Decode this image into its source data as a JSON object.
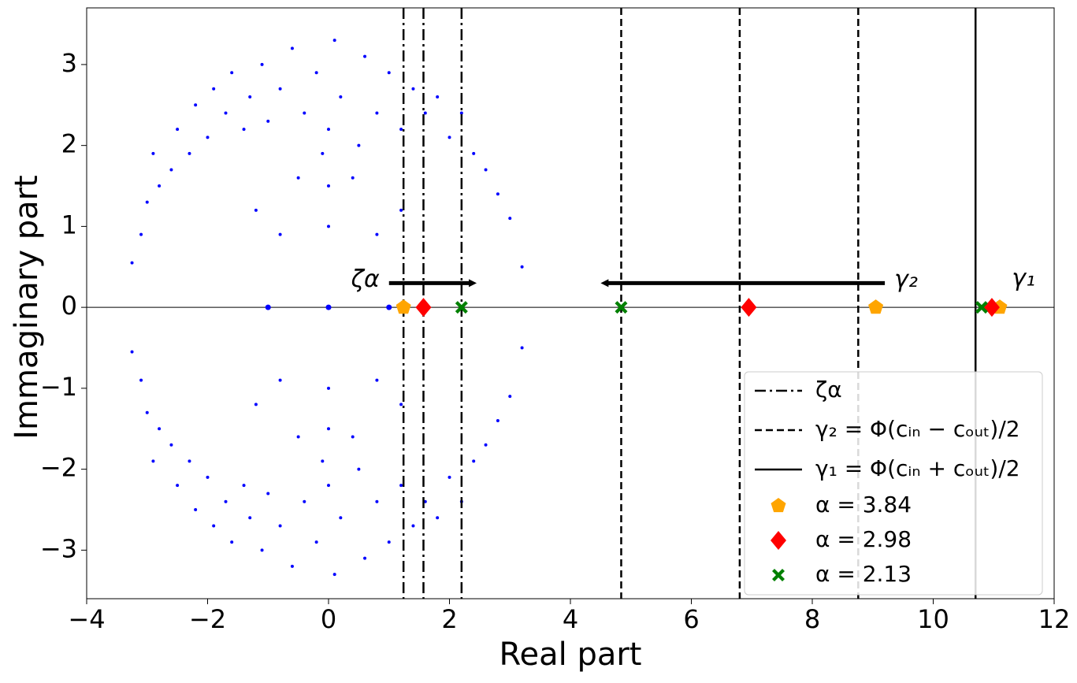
{
  "chart_data": {
    "type": "scatter",
    "xlabel": "Real part",
    "ylabel": "Immaginary part",
    "xlim": [
      -4,
      12
    ],
    "ylim": [
      -3.6,
      3.7
    ],
    "xticks": [
      {
        "value": -4,
        "label": "−4"
      },
      {
        "value": -2,
        "label": "−2"
      },
      0,
      2,
      4,
      6,
      8,
      10,
      12
    ],
    "yticks": [
      {
        "value": -3,
        "label": "−3"
      },
      {
        "value": -2,
        "label": "−2"
      },
      {
        "value": -1,
        "label": "−1"
      },
      0,
      1,
      2,
      3
    ],
    "eigenvalues": {
      "color": "#0000ff",
      "x": [
        -3.25,
        -3.1,
        -3.0,
        -2.8,
        -2.9,
        -2.6,
        -2.5,
        -2.3,
        -2.2,
        -2.0,
        -1.9,
        -1.7,
        -1.6,
        -1.4,
        -1.3,
        -1.1,
        -1.0,
        -0.8,
        -0.6,
        -0.5,
        -0.4,
        -0.2,
        -0.1,
        0,
        0,
        0,
        0.1,
        0.2,
        0.4,
        0.5,
        0.6,
        0.8,
        1.0,
        1.2,
        1.4,
        1.6,
        1.8,
        2.0,
        2.2,
        2.4,
        2.6,
        2.8,
        3.0,
        3.2,
        -1.2,
        1.2,
        -0.8,
        0.8,
        -3.25,
        -3.1,
        -3.0,
        -2.8,
        -2.9,
        -2.6,
        -2.5,
        -2.3,
        -2.2,
        -2.0,
        -1.9,
        -1.7,
        -1.6,
        -1.4,
        -1.3,
        -1.1,
        -1.0,
        -0.8,
        -0.6,
        -0.5,
        -0.4,
        -0.2,
        -0.1,
        0,
        0,
        0,
        0.1,
        0.2,
        0.4,
        0.5,
        0.6,
        0.8,
        1.0,
        1.2,
        1.4,
        1.6,
        1.8,
        2.0,
        2.2,
        2.4,
        2.6,
        2.8,
        3.0,
        3.2,
        -1.2,
        1.2,
        -0.8,
        0.8,
        -1,
        0,
        1
      ],
      "y": [
        0.55,
        0.9,
        1.3,
        1.5,
        1.9,
        1.7,
        2.2,
        1.9,
        2.5,
        2.1,
        2.7,
        2.4,
        2.9,
        2.2,
        2.6,
        3.0,
        2.3,
        2.7,
        3.2,
        1.6,
        2.4,
        2.9,
        1.9,
        1.0,
        1.5,
        2.2,
        3.3,
        2.6,
        1.6,
        2.0,
        3.1,
        2.4,
        2.9,
        2.2,
        2.7,
        2.4,
        2.6,
        2.1,
        2.4,
        1.9,
        1.7,
        1.4,
        1.1,
        0.5,
        1.2,
        1.2,
        0.9,
        0.9,
        -0.55,
        -0.9,
        -1.3,
        -1.5,
        -1.9,
        -1.7,
        -2.2,
        -1.9,
        -2.5,
        -2.1,
        -2.7,
        -2.4,
        -2.9,
        -2.2,
        -2.6,
        -3.0,
        -2.3,
        -2.7,
        -3.2,
        -1.6,
        -2.4,
        -2.9,
        -1.9,
        -1.0,
        -1.5,
        -2.2,
        -3.3,
        -2.6,
        -1.6,
        -2.0,
        -3.1,
        -2.4,
        -2.9,
        -2.2,
        -2.7,
        -2.4,
        -2.6,
        -2.1,
        -2.4,
        -1.9,
        -1.7,
        -1.4,
        -1.1,
        -0.5,
        -1.2,
        -1.2,
        -0.9,
        -0.9,
        0,
        0,
        0
      ]
    },
    "lines": [
      {
        "name": "ζα",
        "style": "dashdot",
        "color": "#000000",
        "x": [
          1.24,
          1.57,
          2.2
        ]
      },
      {
        "name": "γ₂ = Φ(cᵢₙ − cₒᵤₜ)/2",
        "style": "dashed",
        "color": "#000000",
        "x": [
          4.84,
          6.8,
          8.76
        ]
      },
      {
        "name": "γ₁ = Φ(cᵢₙ + cₒᵤₜ)/2",
        "style": "solid",
        "color": "#000000",
        "x": [
          10.7
        ]
      }
    ],
    "series": [
      {
        "name": "α = 3.84",
        "marker": "pentagon",
        "color": "#ffa500",
        "x": [
          1.24,
          9.05,
          11.1
        ],
        "values": [
          0,
          0,
          0
        ]
      },
      {
        "name": "α = 2.98",
        "marker": "diamond",
        "color": "#ff0000",
        "x": [
          1.57,
          6.95,
          10.97
        ],
        "values": [
          0,
          0,
          0
        ]
      },
      {
        "name": "α = 2.13",
        "marker": "x",
        "color": "#008000",
        "x": [
          2.2,
          4.84,
          10.8
        ],
        "values": [
          0,
          0,
          0
        ]
      }
    ],
    "arrows": [
      {
        "label": "ζα",
        "x": [
          1.0,
          2.45
        ],
        "y": 0.3
      },
      {
        "label": "γ₂",
        "x": [
          9.2,
          4.5
        ],
        "y": 0.3
      }
    ],
    "annotations": [
      "γ₁"
    ],
    "legend": "lower right"
  }
}
